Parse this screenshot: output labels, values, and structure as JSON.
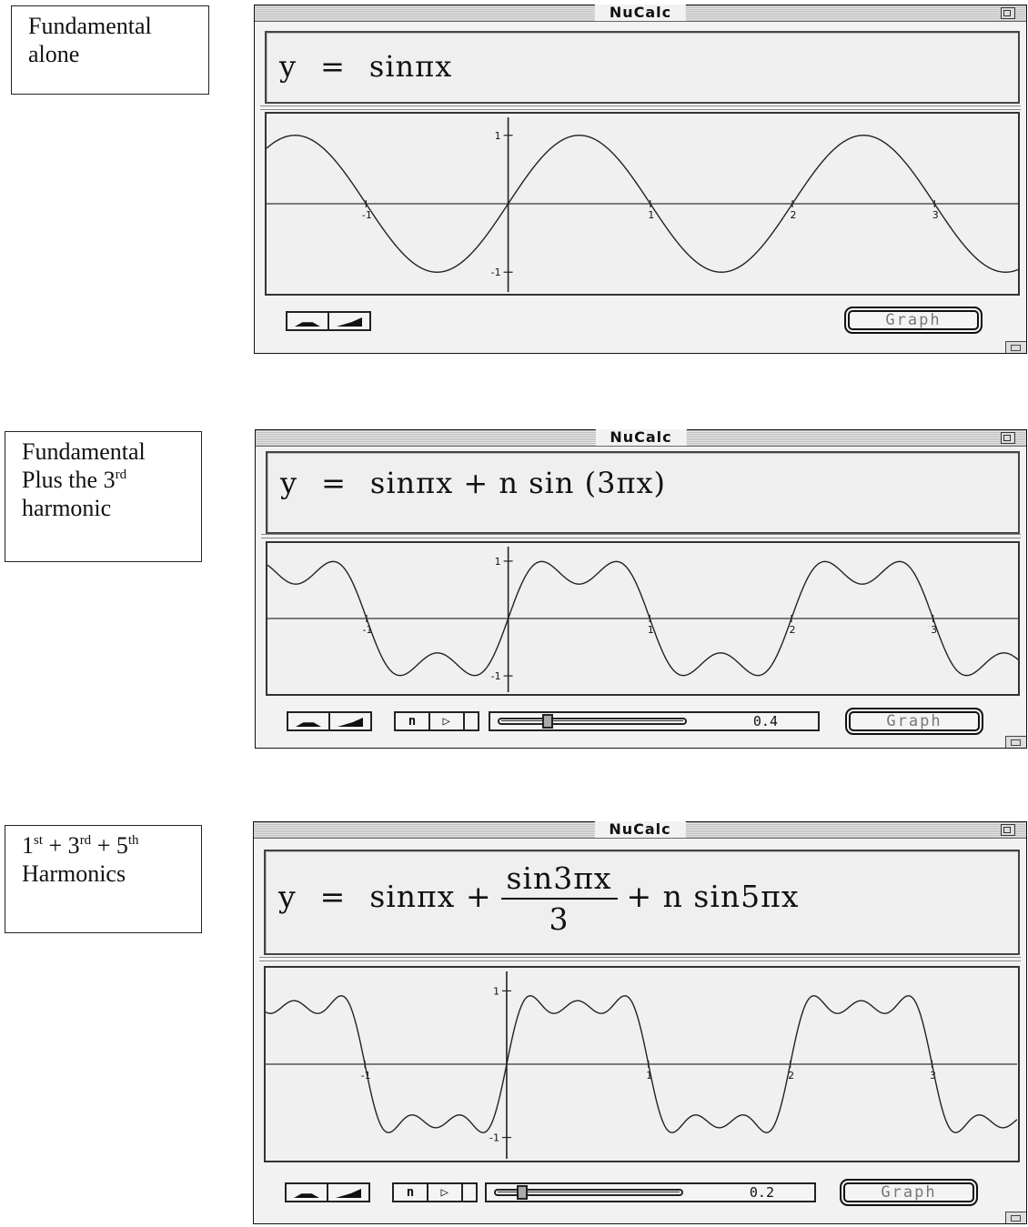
{
  "labels": [
    {
      "lines": [
        {
          "text": "Fundamental"
        },
        {
          "text": "alone"
        }
      ]
    },
    {
      "lines": [
        {
          "text": "Fundamental"
        },
        {
          "text": "Plus the 3",
          "sup": "rd"
        },
        {
          "text": "harmonic"
        }
      ]
    },
    {
      "lines": [
        {
          "parts": [
            {
              "t": "1",
              "s": "st"
            },
            {
              "t": " + 3",
              "s": "rd"
            },
            {
              "t": " + 5",
              "s": "th"
            }
          ]
        },
        {
          "text": "Harmonics"
        }
      ]
    }
  ],
  "windows": [
    {
      "title": "NuCalc",
      "equation": {
        "lhs": "y",
        "eq": "=",
        "rhs": "sinπx"
      },
      "has_slider": false,
      "graph_button": "Graph",
      "harmonics": [
        [
          1,
          1
        ]
      ],
      "n": null
    },
    {
      "title": "NuCalc",
      "equation": {
        "lhs": "y",
        "eq": "=",
        "rhs": "sinπx + n sin (3πx)"
      },
      "has_slider": true,
      "n_button": "n",
      "play_icon": "play-triangle-icon",
      "slider_value": "0.4",
      "n": 0.4,
      "graph_button": "Graph",
      "harmonics": [
        [
          1,
          1
        ],
        [
          3,
          "n"
        ]
      ]
    },
    {
      "title": "NuCalc",
      "equation": {
        "lhs": "y",
        "eq": "=",
        "rhs_a": "sinπx +",
        "frac_num": "sin3πx",
        "frac_den": "3",
        "rhs_b": "+ n sin5πx"
      },
      "has_slider": true,
      "n_button": "n",
      "play_icon": "play-triangle-icon",
      "slider_value": "0.2",
      "n": 0.2,
      "graph_button": "Graph",
      "harmonics": [
        [
          1,
          1
        ],
        [
          3,
          0.3333
        ],
        [
          5,
          "n"
        ]
      ]
    }
  ],
  "chart_data": [
    {
      "type": "line",
      "function": "y = sin(πx)",
      "xlim": [
        -1.7,
        3.6
      ],
      "ylim": [
        -1,
        1
      ],
      "x_ticks": [
        "-1",
        "1",
        "2",
        "3"
      ],
      "y_ticks": [
        "1",
        "-1"
      ]
    },
    {
      "type": "line",
      "function": "y = sin(πx) + n sin(3πx), n = 0.4",
      "xlim": [
        -1.7,
        3.6
      ],
      "ylim": [
        -1,
        1
      ],
      "x_ticks": [
        "-1",
        "1",
        "2",
        "3"
      ],
      "y_ticks": [
        "1",
        "-1"
      ]
    },
    {
      "type": "line",
      "function": "y = sin(πx) + sin(3πx)/3 + n sin(5πx), n = 0.2",
      "xlim": [
        -1.7,
        3.6
      ],
      "ylim": [
        -1,
        1
      ],
      "x_ticks": [
        "-1",
        "1",
        "2",
        "3"
      ],
      "y_ticks": [
        "1",
        "-1"
      ]
    }
  ]
}
